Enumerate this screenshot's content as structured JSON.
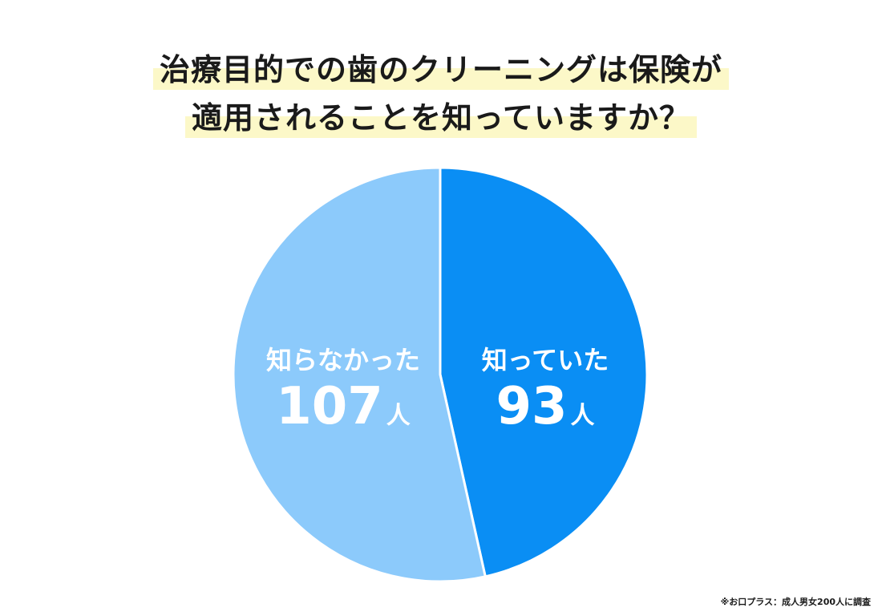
{
  "title": {
    "line1": "治療目的での歯のクリーニングは保険が",
    "line2": "適用されることを知っていますか？"
  },
  "chart_data": {
    "type": "pie",
    "title": "治療目的での歯のクリーニングは保険が適用されることを知っていますか？",
    "unit": "人",
    "slices": [
      {
        "label": "知っていた",
        "value": 93,
        "value_text": "93",
        "color": "#0a8ef4"
      },
      {
        "label": "知らなかった",
        "value": 107,
        "value_text": "107",
        "color": "#8ccafb"
      }
    ],
    "start": "12 o'clock",
    "direction": "clockwise"
  },
  "footnote": "※お口プラス：成人男女200人に調査"
}
